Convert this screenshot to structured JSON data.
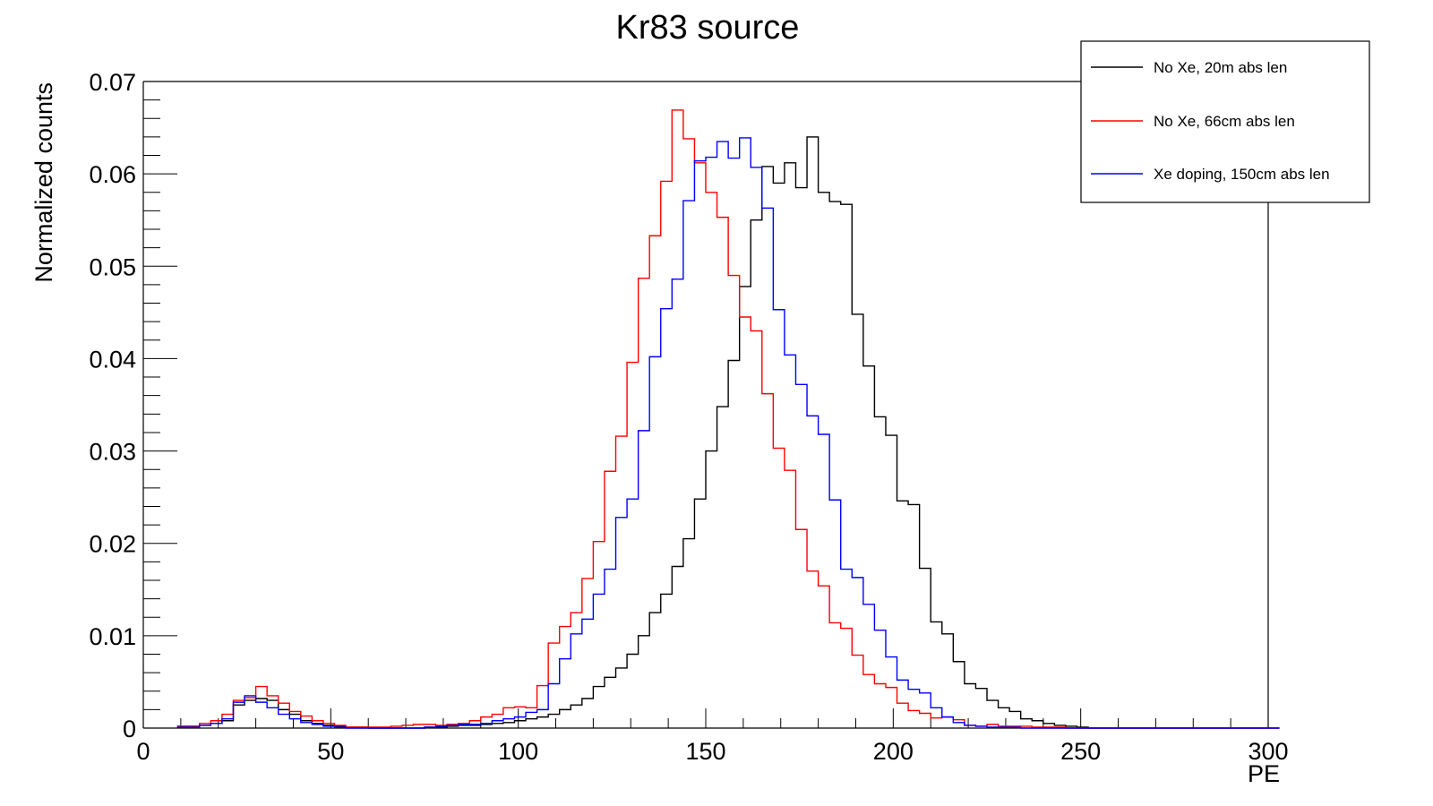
{
  "chart_data": {
    "type": "step-histogram",
    "title": "Kr83 source",
    "xlabel": "PE",
    "ylabel": "Normalized counts",
    "xlim": [
      0,
      300
    ],
    "ylim": [
      0,
      0.07
    ],
    "bin_width": 3,
    "xticks": [
      0,
      50,
      100,
      150,
      200,
      250,
      300
    ],
    "xtick_labels": [
      "0",
      "50",
      "100",
      "150",
      "200",
      "250",
      "300"
    ],
    "yticks": [
      0,
      0.01,
      0.02,
      0.03,
      0.04,
      0.05,
      0.06,
      0.07
    ],
    "ytick_labels": [
      "0",
      "0.01",
      "0.02",
      "0.03",
      "0.04",
      "0.05",
      "0.06",
      "0.07"
    ],
    "legend_position": "top-right",
    "series": [
      {
        "name": "No Xe, 20m abs len",
        "color": "#000000",
        "start": 9,
        "values": [
          0.0002,
          0.0002,
          0.0003,
          0.0005,
          0.0008,
          0.0025,
          0.003,
          0.0032,
          0.003,
          0.002,
          0.0015,
          0.0008,
          0.0005,
          0.0003,
          0.0002,
          0.0001,
          0.0001,
          0,
          0,
          0,
          0,
          0,
          0.0001,
          0.0001,
          0.0002,
          0.0003,
          0.0003,
          0.0004,
          0.0005,
          0.0006,
          0.0008,
          0.001,
          0.0012,
          0.0015,
          0.002,
          0.0025,
          0.0032,
          0.0045,
          0.0055,
          0.0065,
          0.008,
          0.01,
          0.0125,
          0.0145,
          0.0175,
          0.0205,
          0.0248,
          0.03,
          0.0348,
          0.0398,
          0.0478,
          0.055,
          0.0608,
          0.059,
          0.0612,
          0.0585,
          0.064,
          0.058,
          0.057,
          0.0567,
          0.0448,
          0.0392,
          0.0337,
          0.0317,
          0.0246,
          0.0242,
          0.0173,
          0.0115,
          0.0102,
          0.0072,
          0.0048,
          0.0043,
          0.003,
          0.0022,
          0.0018,
          0.001,
          0.0008,
          0.0005,
          0.0003,
          0.0002,
          0.0001,
          0,
          0,
          0,
          0,
          0,
          0,
          0,
          0,
          0,
          0,
          0,
          0,
          0,
          0,
          0,
          0,
          0
        ]
      },
      {
        "name": "No Xe, 66cm abs len",
        "color": "#ff0000",
        "start": 9,
        "values": [
          0.0002,
          0.0002,
          0.0005,
          0.0008,
          0.0015,
          0.003,
          0.0033,
          0.0045,
          0.0035,
          0.0027,
          0.0018,
          0.0013,
          0.0008,
          0.0005,
          0.0003,
          0.0001,
          0.0001,
          0.0001,
          0.0001,
          0.0002,
          0.0003,
          0.0004,
          0.0004,
          0.0003,
          0.0004,
          0.0005,
          0.0008,
          0.0012,
          0.0015,
          0.0022,
          0.0023,
          0.0022,
          0.0046,
          0.0092,
          0.011,
          0.0125,
          0.0162,
          0.0202,
          0.0278,
          0.0316,
          0.0396,
          0.0487,
          0.0533,
          0.0592,
          0.0669,
          0.0638,
          0.0612,
          0.058,
          0.0553,
          0.049,
          0.0445,
          0.043,
          0.0362,
          0.0303,
          0.0279,
          0.0215,
          0.017,
          0.0154,
          0.0114,
          0.0108,
          0.0079,
          0.0058,
          0.0048,
          0.0044,
          0.0027,
          0.0019,
          0.0016,
          0.0011,
          0.0012,
          0.0009,
          0.0003,
          0.0002,
          0.0004,
          0.0002,
          0.0002,
          0.0002,
          0.0001,
          0.0001,
          0.0001,
          0,
          0,
          0,
          0,
          0,
          0,
          0,
          0,
          0,
          0,
          0,
          0,
          0,
          0,
          0,
          0,
          0,
          0,
          0
        ]
      },
      {
        "name": "Xe doping, 150cm abs len",
        "color": "#0000ff",
        "start": 9,
        "values": [
          0.0001,
          0.0001,
          0.0003,
          0.0005,
          0.001,
          0.0028,
          0.0035,
          0.0028,
          0.0022,
          0.0015,
          0.001,
          0.0006,
          0.0004,
          0.0002,
          0.0001,
          0,
          0,
          0,
          0,
          0,
          0,
          0,
          0.0001,
          0.0002,
          0.0003,
          0.0004,
          0.0004,
          0.0005,
          0.0008,
          0.001,
          0.0012,
          0.0017,
          0.002,
          0.0048,
          0.0075,
          0.0102,
          0.0118,
          0.0145,
          0.0172,
          0.0228,
          0.0248,
          0.0322,
          0.0402,
          0.0454,
          0.0486,
          0.0571,
          0.0614,
          0.0618,
          0.0635,
          0.0617,
          0.0639,
          0.0607,
          0.0563,
          0.0453,
          0.0404,
          0.0372,
          0.0338,
          0.0318,
          0.0247,
          0.0172,
          0.0163,
          0.0134,
          0.0106,
          0.0077,
          0.0052,
          0.0042,
          0.0038,
          0.0022,
          0.0012,
          0.0006,
          0.0003,
          0.0002,
          0.0001,
          0.0001,
          0.0001,
          0,
          0,
          0,
          0,
          0,
          0,
          0,
          0,
          0,
          0,
          0,
          0,
          0,
          0,
          0,
          0,
          0,
          0,
          0,
          0,
          0,
          0,
          0
        ]
      }
    ]
  }
}
